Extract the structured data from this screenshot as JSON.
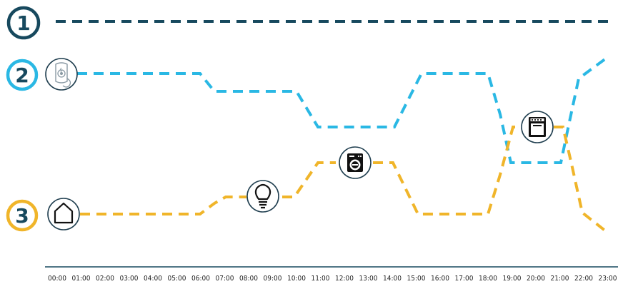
{
  "colors": {
    "line1": "#17495e",
    "line2": "#2ab8e4",
    "line3": "#f0b52a",
    "badge1": "#17495e",
    "badge2": "#2ab8e4",
    "badge3": "#f0b52a",
    "icon_border": "#1f3e4f",
    "axis": "#17495e"
  },
  "badges": [
    {
      "label": "1"
    },
    {
      "label": "2"
    },
    {
      "label": "3"
    }
  ],
  "icons": [
    {
      "name": "charger-icon"
    },
    {
      "name": "home-icon"
    },
    {
      "name": "lightbulb-icon"
    },
    {
      "name": "washing-machine-icon"
    },
    {
      "name": "oven-icon"
    }
  ],
  "axis": {
    "ticks": [
      "00:00",
      "01:00",
      "02:00",
      "03:00",
      "04:00",
      "05:00",
      "06:00",
      "07:00",
      "08:00",
      "09:00",
      "10:00",
      "11:00",
      "12:00",
      "13:00",
      "14:00",
      "15:00",
      "16:00",
      "17:00",
      "18:00",
      "19:00",
      "20:00",
      "21:00",
      "22:00",
      "23:00"
    ]
  }
}
